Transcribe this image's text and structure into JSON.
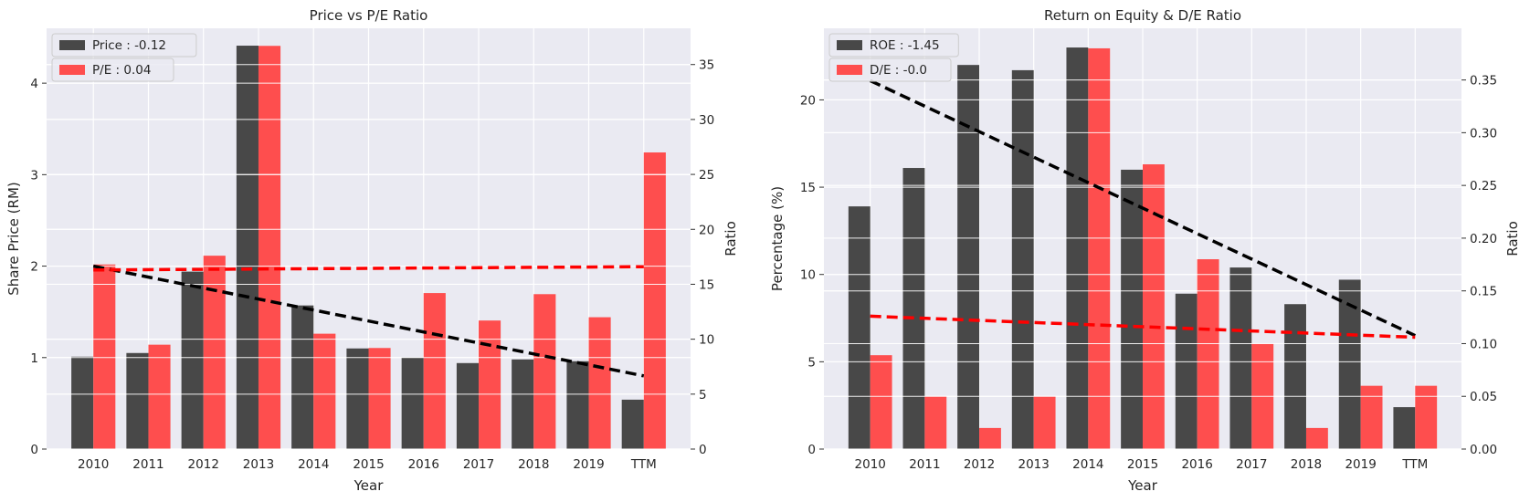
{
  "chart_data": [
    {
      "type": "bar",
      "title": "Price vs P/E Ratio",
      "xlabel": "Year",
      "ylabel_left": "Share Price (RM)",
      "ylabel_right": "Ratio",
      "categories": [
        "2010",
        "2011",
        "2012",
        "2013",
        "2014",
        "2015",
        "2016",
        "2017",
        "2018",
        "2019",
        "TTM"
      ],
      "ylim_left": [
        0,
        4.6
      ],
      "ylim_right": [
        0,
        38.3
      ],
      "yticks_left": [
        0,
        1,
        2,
        3,
        4
      ],
      "yticks_right": [
        0,
        5,
        10,
        15,
        20,
        25,
        30,
        35
      ],
      "grid": true,
      "legend_position": "top-left",
      "series": [
        {
          "name": "Price : -0.12",
          "axis": "left",
          "color": "#3a3a3a",
          "values": [
            1.01,
            1.05,
            1.94,
            4.41,
            1.57,
            1.1,
            1.0,
            0.94,
            0.98,
            0.96,
            0.54
          ]
        },
        {
          "name": "P/E : 0.04",
          "axis": "right",
          "color": "#ff4040",
          "values": [
            16.8,
            9.5,
            17.6,
            36.7,
            10.5,
            9.2,
            14.2,
            11.7,
            14.1,
            12.0,
            27.0
          ]
        }
      ],
      "trendlines": [
        {
          "axis": "left",
          "color": "#000000",
          "from": [
            0,
            2.0
          ],
          "to": [
            10,
            0.8
          ]
        },
        {
          "axis": "right",
          "color": "#ff0000",
          "from": [
            0,
            16.3
          ],
          "to": [
            10,
            16.6
          ]
        }
      ]
    },
    {
      "type": "bar",
      "title": "Return on Equity & D/E Ratio",
      "xlabel": "Year",
      "ylabel_left": "Percentage (%)",
      "ylabel_right": "Ratio",
      "categories": [
        "2010",
        "2011",
        "2012",
        "2013",
        "2014",
        "2015",
        "2016",
        "2017",
        "2018",
        "2019",
        "TTM"
      ],
      "ylim_left": [
        0,
        24.1
      ],
      "ylim_right": [
        0,
        0.399
      ],
      "yticks_left": [
        0,
        5,
        10,
        15,
        20
      ],
      "yticks_right": [
        "0.00",
        "0.05",
        "0.10",
        "0.15",
        "0.20",
        "0.25",
        "0.30",
        "0.35"
      ],
      "grid": true,
      "legend_position": "top-left",
      "series": [
        {
          "name": "ROE : -1.45",
          "axis": "left",
          "color": "#3a3a3a",
          "values": [
            13.9,
            16.1,
            22.0,
            21.7,
            23.0,
            16.0,
            8.9,
            10.4,
            8.3,
            9.7,
            2.4
          ]
        },
        {
          "name": "D/E : -0.0",
          "axis": "right",
          "color": "#ff4040",
          "values": [
            0.089,
            0.05,
            0.02,
            0.05,
            0.38,
            0.27,
            0.18,
            0.1,
            0.02,
            0.06,
            0.06
          ]
        }
      ],
      "trendlines": [
        {
          "axis": "left",
          "color": "#000000",
          "from": [
            0,
            21.1
          ],
          "to": [
            10,
            6.5
          ]
        },
        {
          "axis": "right",
          "color": "#ff0000",
          "from": [
            0,
            0.126
          ],
          "to": [
            10,
            0.106
          ]
        }
      ]
    }
  ]
}
